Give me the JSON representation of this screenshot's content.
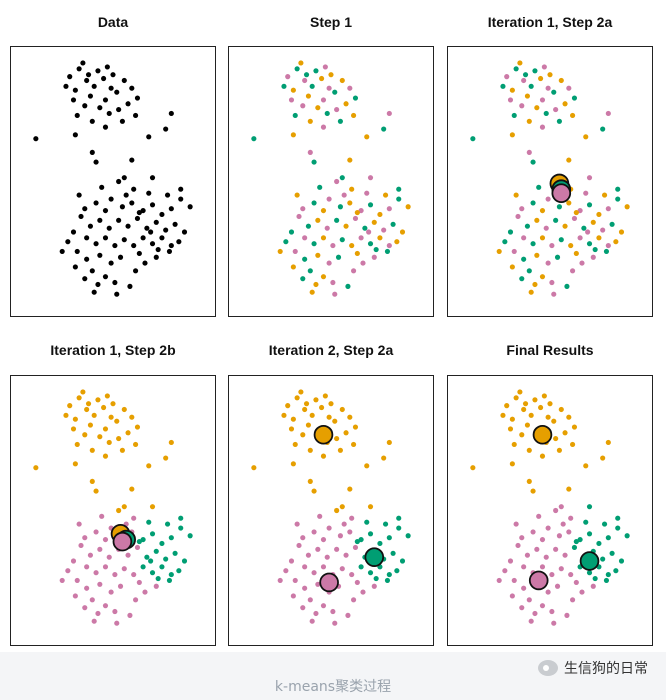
{
  "colors": {
    "black": "#000000",
    "orange": "#E69F00",
    "pink": "#CC79A7",
    "green": "#009E73",
    "centroid_stroke": "#111111"
  },
  "caption": "k-means聚类过程",
  "watermark": {
    "text": "生信狗的日常",
    "icon": "wechat-icon"
  },
  "chart_data": [
    {
      "type": "scatter",
      "title": "Data",
      "xlim": [
        0,
        10
      ],
      "ylim": [
        0,
        13
      ],
      "mode": "points-black",
      "centroids": []
    },
    {
      "type": "scatter",
      "title": "Step 1",
      "xlim": [
        0,
        10
      ],
      "ylim": [
        0,
        13
      ],
      "mode": "random",
      "centroids": []
    },
    {
      "type": "scatter",
      "title": "Iteration 1, Step 2a",
      "xlim": [
        0,
        10
      ],
      "ylim": [
        0,
        13
      ],
      "mode": "random",
      "centroids": [
        {
          "cluster": "orange",
          "x": 5.5,
          "y": 6.4
        },
        {
          "cluster": "green",
          "x": 5.6,
          "y": 6.1
        },
        {
          "cluster": "pink",
          "x": 5.6,
          "y": 5.9
        }
      ]
    },
    {
      "type": "scatter",
      "title": "Iteration 1, Step 2b",
      "xlim": [
        0,
        10
      ],
      "ylim": [
        0,
        13
      ],
      "mode": "iter1",
      "centroids": [
        {
          "cluster": "orange",
          "x": 5.4,
          "y": 5.3
        },
        {
          "cluster": "green",
          "x": 5.7,
          "y": 5.0
        },
        {
          "cluster": "pink",
          "x": 5.5,
          "y": 4.9
        }
      ]
    },
    {
      "type": "scatter",
      "title": "Iteration 2, Step 2a",
      "xlim": [
        0,
        10
      ],
      "ylim": [
        0,
        13
      ],
      "mode": "iter1",
      "centroids": [
        {
          "cluster": "orange",
          "x": 4.6,
          "y": 10.4
        },
        {
          "cluster": "green",
          "x": 7.3,
          "y": 4.1
        },
        {
          "cluster": "pink",
          "x": 4.9,
          "y": 2.8
        }
      ]
    },
    {
      "type": "scatter",
      "title": "Final Results",
      "xlim": [
        0,
        10
      ],
      "ylim": [
        0,
        13
      ],
      "mode": "final",
      "centroids": [
        {
          "cluster": "orange",
          "x": 4.6,
          "y": 10.4
        },
        {
          "cluster": "green",
          "x": 7.1,
          "y": 3.9
        },
        {
          "cluster": "pink",
          "x": 4.4,
          "y": 2.9
        }
      ]
    }
  ],
  "points": [
    [
      3.2,
      12.3
    ],
    [
      3.4,
      12.6
    ],
    [
      2.7,
      11.9
    ],
    [
      2.5,
      11.4
    ],
    [
      3.0,
      11.2
    ],
    [
      3.6,
      11.7
    ],
    [
      4.2,
      12.2
    ],
    [
      4.5,
      11.8
    ],
    [
      4.9,
      11.3
    ],
    [
      4.0,
      11.4
    ],
    [
      3.8,
      10.9
    ],
    [
      4.6,
      10.7
    ],
    [
      5.2,
      11.1
    ],
    [
      5.6,
      11.7
    ],
    [
      6.0,
      11.3
    ],
    [
      6.3,
      10.8
    ],
    [
      5.8,
      10.5
    ],
    [
      5.3,
      10.2
    ],
    [
      4.8,
      10.0
    ],
    [
      4.3,
      10.3
    ],
    [
      3.5,
      10.4
    ],
    [
      3.1,
      9.9
    ],
    [
      3.9,
      9.6
    ],
    [
      4.6,
      9.3
    ],
    [
      5.5,
      9.6
    ],
    [
      6.2,
      9.9
    ],
    [
      2.9,
      10.7
    ],
    [
      3.7,
      12.0
    ],
    [
      5.0,
      12.0
    ],
    [
      4.7,
      12.4
    ],
    [
      0.9,
      8.7
    ],
    [
      3.0,
      8.9
    ],
    [
      8.1,
      10.0
    ],
    [
      7.8,
      9.2
    ],
    [
      6.9,
      8.8
    ],
    [
      3.9,
      8.0
    ],
    [
      4.1,
      7.5
    ],
    [
      6.0,
      7.6
    ],
    [
      5.3,
      6.5
    ],
    [
      5.6,
      6.7
    ],
    [
      6.1,
      6.1
    ],
    [
      7.1,
      6.7
    ],
    [
      8.6,
      6.1
    ],
    [
      3.2,
      5.8
    ],
    [
      3.5,
      5.1
    ],
    [
      4.1,
      5.4
    ],
    [
      4.6,
      5.0
    ],
    [
      4.9,
      5.6
    ],
    [
      5.5,
      5.2
    ],
    [
      6.0,
      5.4
    ],
    [
      6.6,
      5.0
    ],
    [
      7.1,
      5.3
    ],
    [
      7.6,
      4.8
    ],
    [
      8.1,
      5.1
    ],
    [
      8.6,
      5.6
    ],
    [
      9.1,
      5.2
    ],
    [
      3.3,
      4.7
    ],
    [
      3.8,
      4.2
    ],
    [
      4.3,
      4.5
    ],
    [
      4.8,
      4.1
    ],
    [
      5.3,
      4.5
    ],
    [
      5.8,
      4.2
    ],
    [
      6.3,
      4.6
    ],
    [
      6.8,
      4.1
    ],
    [
      7.3,
      4.4
    ],
    [
      7.8,
      4.0
    ],
    [
      8.3,
      4.3
    ],
    [
      8.8,
      3.9
    ],
    [
      3.6,
      3.6
    ],
    [
      4.1,
      3.3
    ],
    [
      4.6,
      3.6
    ],
    [
      5.1,
      3.2
    ],
    [
      5.6,
      3.5
    ],
    [
      6.1,
      3.2
    ],
    [
      6.6,
      3.6
    ],
    [
      7.1,
      3.3
    ],
    [
      7.6,
      3.6
    ],
    [
      8.1,
      3.2
    ],
    [
      2.6,
      3.4
    ],
    [
      2.3,
      2.9
    ],
    [
      3.1,
      2.9
    ],
    [
      3.6,
      2.5
    ],
    [
      4.3,
      2.7
    ],
    [
      4.9,
      2.3
    ],
    [
      5.4,
      2.6
    ],
    [
      6.4,
      2.8
    ],
    [
      7.3,
      2.6
    ],
    [
      3.9,
      1.9
    ],
    [
      4.6,
      1.6
    ],
    [
      5.1,
      1.3
    ],
    [
      3.5,
      1.5
    ],
    [
      4.2,
      1.2
    ],
    [
      6.2,
      1.9
    ],
    [
      5.9,
      1.1
    ],
    [
      3.0,
      2.1
    ],
    [
      7.0,
      3.9
    ],
    [
      7.4,
      3.0
    ],
    [
      8.5,
      3.4
    ],
    [
      6.7,
      2.3
    ],
    [
      8.0,
      2.9
    ],
    [
      6.4,
      4.9
    ],
    [
      5.7,
      5.8
    ],
    [
      4.4,
      6.2
    ],
    [
      7.9,
      5.8
    ],
    [
      6.9,
      5.9
    ],
    [
      2.9,
      3.9
    ],
    [
      4.0,
      0.8
    ],
    [
      5.2,
      0.7
    ]
  ]
}
